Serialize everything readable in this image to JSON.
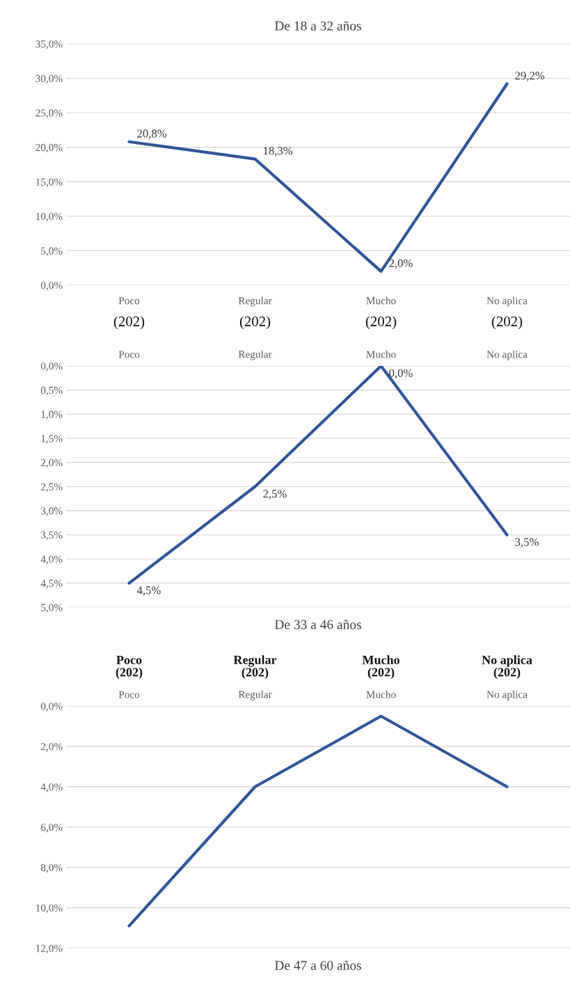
{
  "chart_data": [
    {
      "type": "line",
      "title": "De 18 a 32 años",
      "categories": [
        "Poco",
        "Regular",
        "Mucho",
        "No aplica"
      ],
      "series": [
        {
          "color": "#2f5597",
          "values": [
            20.8,
            18.3,
            2.0,
            29.2
          ],
          "value_labels": [
            "20,8%",
            "18,3%",
            "2,0%",
            "29,2%"
          ]
        }
      ],
      "ylim": [
        0,
        35
      ],
      "yticks": [
        {
          "value": 0,
          "label": "0,0%"
        },
        {
          "value": 5,
          "label": "5,0%"
        },
        {
          "value": 10,
          "label": "10,0%"
        },
        {
          "value": 15,
          "label": "15,0%"
        },
        {
          "value": 20,
          "label": "20,0%"
        },
        {
          "value": 25,
          "label": "25,0%"
        },
        {
          "value": 30,
          "label": "30,0%"
        },
        {
          "value": 35,
          "label": "35,0%"
        }
      ],
      "grid": "y",
      "legend": false,
      "marker": "none",
      "line_style": "solid",
      "annotations": [
        "(202)",
        "(202)",
        "(202)",
        "(202)"
      ]
    },
    {
      "type": "line",
      "title": "De 33 a 46 años",
      "categories": [
        "Poco",
        "Regular",
        "Mucho",
        "No aplica"
      ],
      "series": [
        {
          "color": "#2f5597",
          "values": [
            4.5,
            2.5,
            0.0,
            3.5
          ],
          "value_labels": [
            "4,5%",
            "2,5%",
            "0,0%",
            "3,5%"
          ]
        }
      ],
      "ylim": [
        5,
        0
      ],
      "yticks": [
        {
          "value": 0,
          "label": "0,0%"
        },
        {
          "value": 0.5,
          "label": "0,5%"
        },
        {
          "value": 1,
          "label": "1,0%"
        },
        {
          "value": 1.5,
          "label": "1,5%"
        },
        {
          "value": 2,
          "label": "2,0%"
        },
        {
          "value": 2.5,
          "label": "2,5%"
        },
        {
          "value": 3,
          "label": "3,0%"
        },
        {
          "value": 3.5,
          "label": "3,5%"
        },
        {
          "value": 4,
          "label": "4,0%"
        },
        {
          "value": 4.5,
          "label": "4,5%"
        },
        {
          "value": 5,
          "label": "5,0%"
        }
      ],
      "grid": "y",
      "legend": false,
      "marker": "none",
      "line_style": "solid"
    },
    {
      "type": "line",
      "title": "De 47 a 60 años",
      "categories": [
        "Poco",
        "Regular",
        "Mucho",
        "No aplica"
      ],
      "series": [
        {
          "color": "#2f5597",
          "values": [
            10.9,
            4.0,
            0.5,
            4.0
          ]
        }
      ],
      "ylim": [
        12,
        0
      ],
      "yticks": [
        {
          "value": 0,
          "label": "0,0%"
        },
        {
          "value": 2,
          "label": "2,0%"
        },
        {
          "value": 4,
          "label": "4,0%"
        },
        {
          "value": 6,
          "label": "6,0%"
        },
        {
          "value": 8,
          "label": "8,0%"
        },
        {
          "value": 10,
          "label": "10,0%"
        },
        {
          "value": 12,
          "label": "12,0%"
        }
      ],
      "grid": "y",
      "legend": false,
      "marker": "none",
      "line_style": "solid",
      "annotations": [
        "Poco\n(202)",
        "Regular\n(202)",
        "Mucho\n(202)",
        "No aplica\n(202)"
      ]
    }
  ]
}
